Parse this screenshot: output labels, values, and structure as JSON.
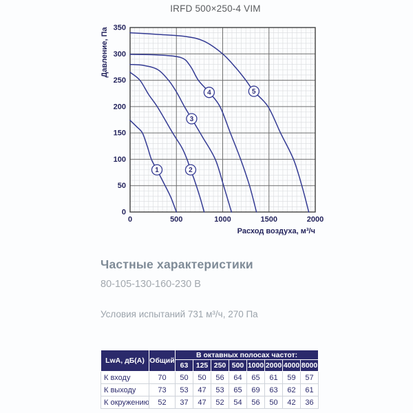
{
  "page": {
    "title": "IRFD 500×250-4 VIM"
  },
  "chart_data": {
    "type": "line",
    "title": "IRFD 500×250-4 VIM",
    "xlabel": "Расход воздуха, м³/ч",
    "ylabel": "Давление, Па",
    "xlim": [
      0,
      2000
    ],
    "ylim": [
      0,
      350
    ],
    "xticks": [
      0,
      500,
      1000,
      1500,
      2000
    ],
    "yticks": [
      350,
      300,
      250,
      200,
      150,
      100,
      50,
      0
    ],
    "grid": "major+minor",
    "minor_step_x": 50,
    "minor_step_y": 10,
    "legend_position": "labels-on-curves",
    "series": [
      {
        "name": "1",
        "label_at": [
          290,
          80
        ],
        "points": [
          [
            0,
            174
          ],
          [
            70,
            162
          ],
          [
            133,
            150
          ],
          [
            185,
            125
          ],
          [
            230,
            100
          ],
          [
            290,
            80
          ],
          [
            378,
            50
          ],
          [
            440,
            28
          ],
          [
            500,
            0
          ]
        ]
      },
      {
        "name": "2",
        "label_at": [
          654,
          80
        ],
        "points": [
          [
            0,
            265
          ],
          [
            106,
            250
          ],
          [
            200,
            223
          ],
          [
            300,
            198
          ],
          [
            460,
            150
          ],
          [
            560,
            122
          ],
          [
            615,
            100
          ],
          [
            654,
            80
          ],
          [
            700,
            58
          ],
          [
            755,
            28
          ],
          [
            800,
            0
          ]
        ]
      },
      {
        "name": "3",
        "label_at": [
          665,
          177
        ],
        "points": [
          [
            0,
            280
          ],
          [
            150,
            278
          ],
          [
            300,
            270
          ],
          [
            415,
            250
          ],
          [
            500,
            228
          ],
          [
            587,
            200
          ],
          [
            665,
            177
          ],
          [
            780,
            143
          ],
          [
            920,
            100
          ],
          [
            1010,
            50
          ],
          [
            1095,
            0
          ]
        ]
      },
      {
        "name": "4",
        "label_at": [
          854,
          227
        ],
        "points": [
          [
            0,
            299
          ],
          [
            300,
            298
          ],
          [
            550,
            293
          ],
          [
            650,
            277
          ],
          [
            737,
            250
          ],
          [
            854,
            227
          ],
          [
            971,
            200
          ],
          [
            1083,
            150
          ],
          [
            1194,
            100
          ],
          [
            1290,
            50
          ],
          [
            1365,
            0
          ]
        ]
      },
      {
        "name": "5",
        "label_at": [
          1337,
          229
        ],
        "points": [
          [
            0,
            340
          ],
          [
            300,
            337
          ],
          [
            600,
            333
          ],
          [
            800,
            324
          ],
          [
            1000,
            300
          ],
          [
            1150,
            272
          ],
          [
            1250,
            250
          ],
          [
            1337,
            229
          ],
          [
            1490,
            200
          ],
          [
            1625,
            150
          ],
          [
            1765,
            100
          ],
          [
            1855,
            50
          ],
          [
            1930,
            0
          ]
        ]
      }
    ],
    "colors": {
      "curve": "#333a93",
      "grid_major": "#6e6e6e",
      "grid_minor": "#d9dbdd",
      "border": "#3f3f3f",
      "tick_text": "#23235c"
    }
  },
  "section": {
    "heading": "Частные характеристики",
    "subheading": "80-105-130-160-230 В",
    "conditions": "Условия испытаний 731 м³/ч, 270 Па"
  },
  "table": {
    "col1_header": "LwA, дБ(A)",
    "col2_header": "Общий",
    "band_header": "В октавных полосах частот:",
    "frequencies": [
      "63",
      "125",
      "250",
      "500",
      "1000",
      "2000",
      "4000",
      "8000"
    ],
    "rows": [
      {
        "label": "К входу",
        "total": "70",
        "values": [
          "50",
          "50",
          "56",
          "64",
          "65",
          "61",
          "59",
          "57"
        ]
      },
      {
        "label": "К выходу",
        "total": "73",
        "values": [
          "53",
          "47",
          "53",
          "65",
          "69",
          "63",
          "62",
          "61"
        ]
      },
      {
        "label": "К окружению",
        "total": "52",
        "values": [
          "37",
          "47",
          "52",
          "54",
          "56",
          "50",
          "42",
          "36"
        ]
      }
    ],
    "header_bg": "#2b2a6b"
  }
}
